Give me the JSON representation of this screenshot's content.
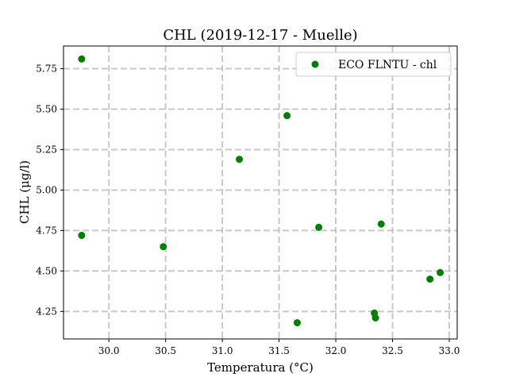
{
  "chart_data": {
    "type": "scatter",
    "title": "CHL (2019-12-17 - Muelle)",
    "xlabel": "Temperatura (°C)",
    "ylabel": "CHL (μg/l)",
    "xlim": [
      29.6,
      33.07
    ],
    "ylim": [
      4.08,
      5.89
    ],
    "x_ticks": [
      30.0,
      30.5,
      31.0,
      31.5,
      32.0,
      32.5,
      33.0
    ],
    "x_tick_labels": [
      "30.0",
      "30.5",
      "31.0",
      "31.5",
      "32.0",
      "32.5",
      "33.0"
    ],
    "y_ticks": [
      4.25,
      4.5,
      4.75,
      5.0,
      5.25,
      5.5,
      5.75
    ],
    "y_tick_labels": [
      "4.25",
      "4.50",
      "4.75",
      "5.00",
      "5.25",
      "5.50",
      "5.75"
    ],
    "grid": true,
    "legend_position": "top-right",
    "series": [
      {
        "name": "ECO FLNTU - chl",
        "color": "#008000",
        "marker": "circle",
        "points": [
          {
            "x": 29.76,
            "y": 5.81
          },
          {
            "x": 29.76,
            "y": 4.72
          },
          {
            "x": 30.48,
            "y": 4.65
          },
          {
            "x": 31.15,
            "y": 5.19
          },
          {
            "x": 31.57,
            "y": 5.46
          },
          {
            "x": 31.66,
            "y": 4.18
          },
          {
            "x": 31.85,
            "y": 4.77
          },
          {
            "x": 32.34,
            "y": 4.24
          },
          {
            "x": 32.35,
            "y": 4.21
          },
          {
            "x": 32.4,
            "y": 4.79
          },
          {
            "x": 32.83,
            "y": 4.45
          },
          {
            "x": 32.92,
            "y": 4.49
          }
        ]
      }
    ]
  }
}
